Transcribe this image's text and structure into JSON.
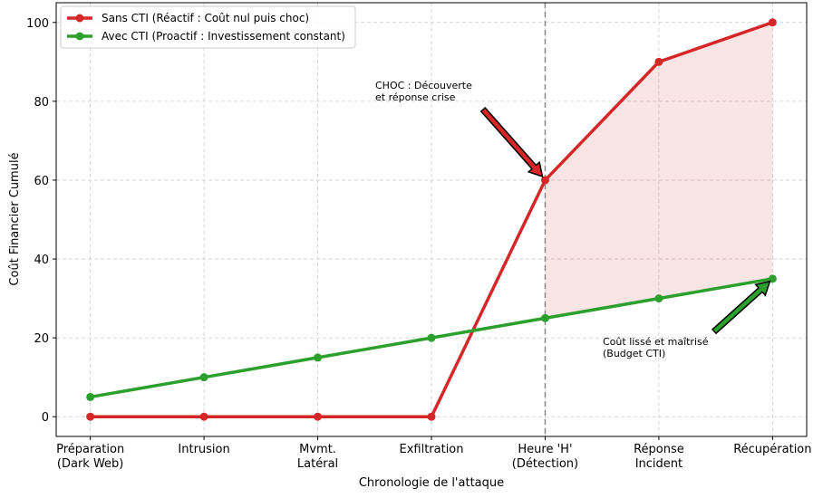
{
  "chart_data": {
    "type": "line",
    "xlabel": "Chronologie de l'attaque",
    "ylabel": "Coût Financier Cumulé",
    "categories": [
      "Préparation\n(Dark Web)",
      "Intrusion",
      "Mvmt.\nLatéral",
      "Exfiltration",
      "Heure 'H'\n(Détection)",
      "Réponse\nIncident",
      "Récupération"
    ],
    "series": [
      {
        "name": "Sans CTI (Réactif : Coût nul puis choc)",
        "color": "#d62728",
        "values": [
          0,
          0,
          0,
          0,
          60,
          90,
          100
        ]
      },
      {
        "name": "Avec CTI (Proactif : Investissement constant)",
        "color": "#2ca02c",
        "values": [
          5,
          10,
          15,
          20,
          25,
          30,
          35
        ]
      }
    ],
    "ylim": [
      -5,
      105
    ],
    "yticks": [
      0,
      20,
      40,
      60,
      80,
      100
    ],
    "grid": true,
    "legend": "upper-left",
    "annotations": [
      {
        "text": "CHOC : Découverte\net réponse crise",
        "color": "#d62728"
      },
      {
        "text": "Coût lissé et maîtrisé\n(Budget CTI)",
        "color": "#2ca02c"
      }
    ]
  }
}
